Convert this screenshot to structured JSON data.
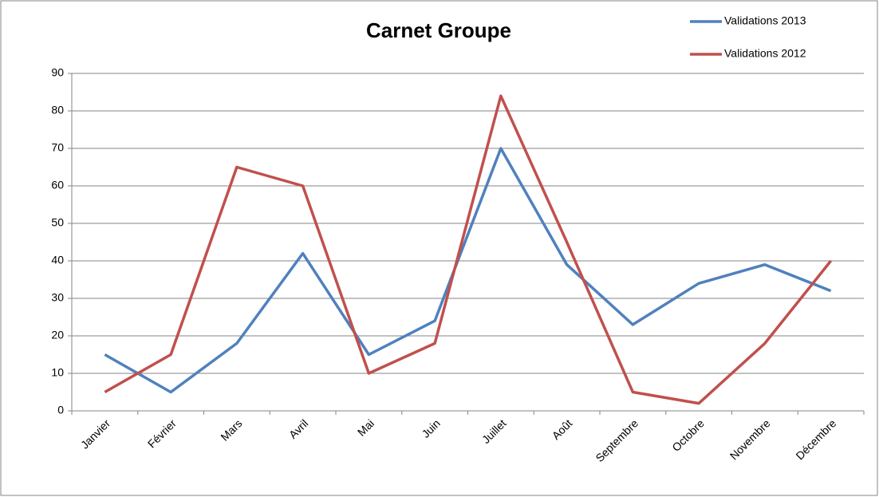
{
  "chart_data": {
    "type": "line",
    "title": "Carnet Groupe",
    "categories": [
      "Janvier",
      "Février",
      "Mars",
      "Avril",
      "Mai",
      "Juin",
      "Juillet",
      "Août",
      "Septembre",
      "Octobre",
      "Novembre",
      "Décembre"
    ],
    "series": [
      {
        "name": "Validations 2013",
        "color": "#4f81bd",
        "values": [
          15,
          5,
          18,
          42,
          15,
          24,
          70,
          39,
          23,
          34,
          39,
          32
        ]
      },
      {
        "name": "Validations 2012",
        "color": "#c0504d",
        "values": [
          5,
          15,
          65,
          60,
          10,
          18,
          84,
          45,
          5,
          2,
          18,
          40
        ]
      }
    ],
    "ylim": [
      0,
      90
    ],
    "yticks": [
      0,
      10,
      20,
      30,
      40,
      50,
      60,
      70,
      80,
      90
    ],
    "grid": true
  }
}
